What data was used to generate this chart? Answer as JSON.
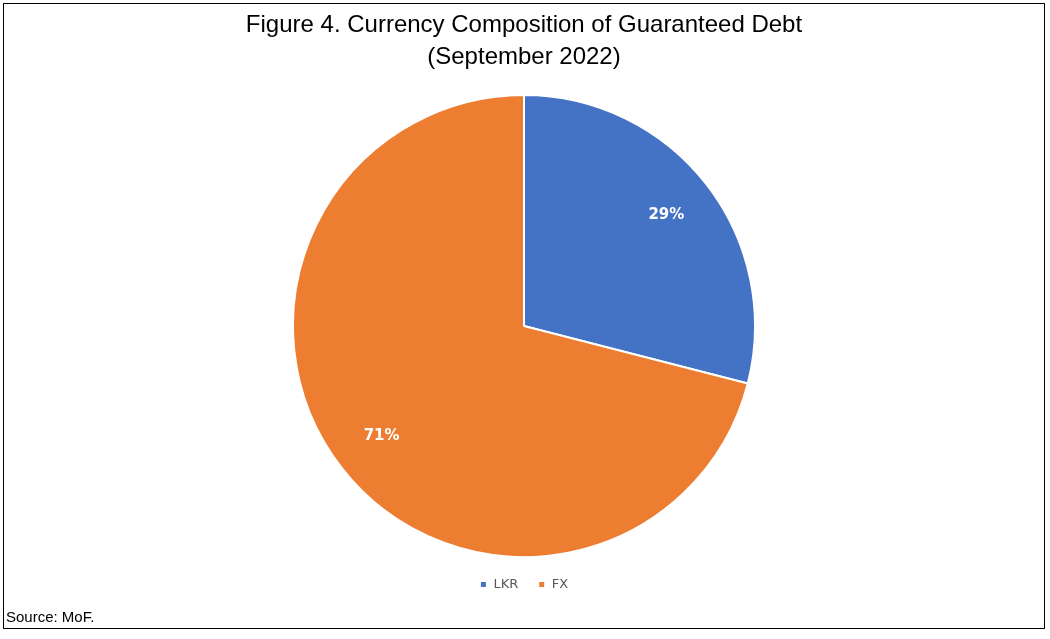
{
  "chart_data": {
    "type": "pie",
    "title": "Figure 4. Currency Composition of Guaranteed Debt",
    "subtitle": "(September 2022)",
    "categories": [
      "LKR",
      "FX"
    ],
    "values": [
      29,
      71
    ],
    "colors": [
      "#4472c4",
      "#ed7d31"
    ],
    "value_labels": [
      "29%",
      "71%"
    ],
    "legend": "bottom",
    "annotations": [
      "Source: MoF."
    ]
  }
}
